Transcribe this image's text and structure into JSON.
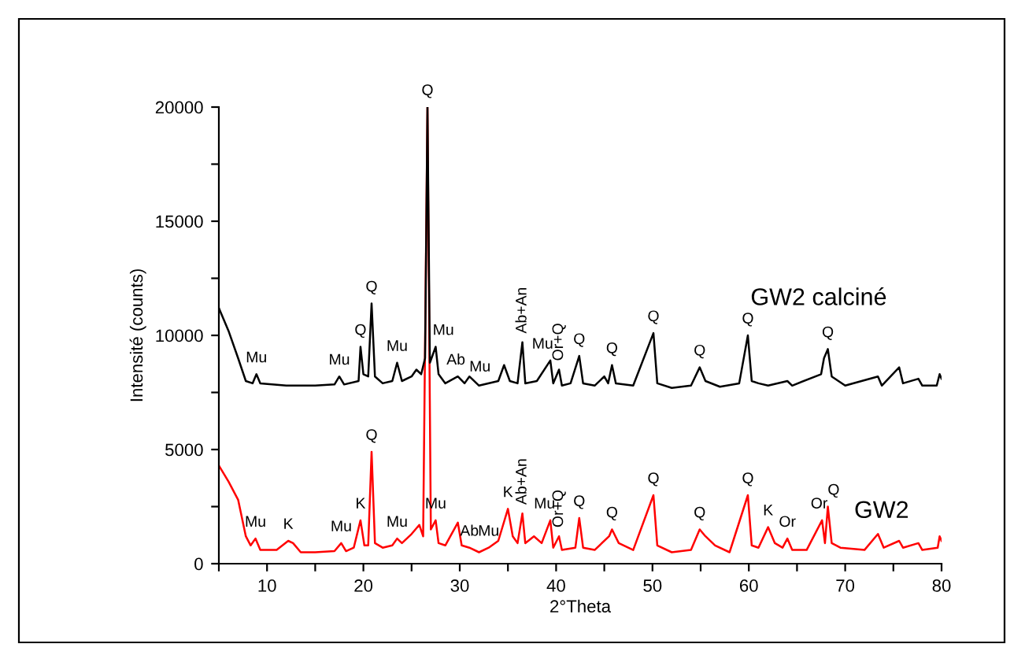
{
  "chart_data": {
    "type": "line",
    "xlabel": "2°Theta",
    "ylabel": "Intensité (counts)",
    "xlim": [
      5,
      80
    ],
    "ylim": [
      0,
      20000
    ],
    "xticks": [
      {
        "value": 5,
        "label": null
      },
      10,
      {
        "value": 15,
        "label": null
      },
      20,
      {
        "value": 25,
        "label": null
      },
      30,
      {
        "value": 35,
        "label": null
      },
      40,
      {
        "value": 45,
        "label": null
      },
      50,
      {
        "value": 55,
        "label": null
      },
      60,
      {
        "value": 65,
        "label": null
      },
      70,
      {
        "value": 75,
        "label": null
      },
      80
    ],
    "yticks": [
      0,
      {
        "value": 2500,
        "label": null
      },
      5000,
      {
        "value": 7500,
        "label": null
      },
      10000,
      {
        "value": 12500,
        "label": null
      },
      15000,
      {
        "value": 17500,
        "label": null
      },
      20000
    ],
    "grid": false,
    "legend": false,
    "marker": "none",
    "line_style": "solid",
    "series": [
      {
        "name": "GW2 calciné",
        "color": "#000000",
        "x": [
          5,
          6,
          7,
          7.8,
          8.5,
          8.9,
          9.3,
          12,
          15,
          17,
          17.5,
          18,
          19.5,
          19.7,
          20,
          20.5,
          20.85,
          21.2,
          22,
          23,
          23.5,
          24,
          25,
          25.5,
          26,
          26.4,
          26.65,
          26.9,
          27.5,
          27.8,
          28.5,
          29.8,
          30.5,
          31,
          32,
          34,
          34.6,
          35.2,
          36,
          36.5,
          36.8,
          38,
          39.4,
          39.7,
          40.3,
          40.6,
          41.5,
          42.4,
          42.8,
          44,
          45,
          45.4,
          45.8,
          46.2,
          48,
          50.1,
          50.5,
          52,
          54,
          54.9,
          55.5,
          57,
          59,
          59.9,
          60.3,
          61,
          62,
          64,
          64.5,
          67.5,
          67.8,
          68.2,
          68.6,
          70,
          73.4,
          73.8,
          75.6,
          76,
          77.6,
          78,
          79.5,
          79.8,
          80
        ],
        "values": [
          11200,
          10200,
          9000,
          8000,
          7900,
          8300,
          7900,
          7800,
          7800,
          7850,
          8200,
          7850,
          8000,
          9500,
          8300,
          8200,
          11400,
          8200,
          7900,
          8000,
          8800,
          8000,
          8200,
          8500,
          8300,
          9000,
          20000,
          8800,
          9500,
          8300,
          7900,
          8200,
          7900,
          8200,
          7800,
          8000,
          8700,
          8000,
          7900,
          9700,
          7900,
          8000,
          8900,
          7900,
          8500,
          7800,
          7900,
          9100,
          7900,
          7800,
          8200,
          7900,
          8700,
          7900,
          7800,
          10100,
          7900,
          7700,
          7800,
          8600,
          8000,
          7750,
          7900,
          10000,
          8000,
          7900,
          7800,
          8000,
          7800,
          8300,
          9000,
          9400,
          8200,
          7800,
          8200,
          7800,
          8600,
          7900,
          8100,
          7800,
          7800,
          8300,
          8100
        ]
      },
      {
        "name": "GW2",
        "color": "#ff0000",
        "x": [
          5,
          6,
          7,
          7.8,
          8.3,
          8.8,
          9.3,
          11,
          12.2,
          12.7,
          13.5,
          15,
          17,
          17.7,
          18.2,
          19,
          19.7,
          20.1,
          20.5,
          20.85,
          21.2,
          22,
          23,
          23.5,
          24,
          25,
          25.8,
          26.2,
          26.65,
          27,
          27.5,
          27.8,
          28.5,
          29.8,
          30.2,
          31,
          32,
          33,
          34,
          35,
          35.5,
          36,
          36.5,
          36.8,
          37.7,
          38.5,
          39.4,
          39.7,
          40.3,
          40.6,
          42,
          42.4,
          42.8,
          44,
          45.5,
          45.8,
          46.5,
          48,
          50.1,
          50.5,
          52,
          54,
          54.9,
          55.5,
          56.5,
          58,
          59.9,
          60.3,
          61,
          62,
          62.7,
          63.5,
          64,
          64.5,
          66,
          67.6,
          67.9,
          68.2,
          68.6,
          69.5,
          72,
          73.4,
          74,
          75.6,
          76,
          77.6,
          78,
          79.6,
          79.8,
          80
        ],
        "values": [
          4300,
          3600,
          2800,
          1200,
          800,
          1100,
          600,
          600,
          1000,
          900,
          500,
          500,
          550,
          900,
          550,
          700,
          1900,
          800,
          800,
          4900,
          900,
          700,
          800,
          1100,
          900,
          1300,
          1700,
          1200,
          20000,
          1500,
          1900,
          900,
          800,
          1800,
          800,
          700,
          500,
          700,
          1000,
          2400,
          1200,
          900,
          2200,
          900,
          1200,
          900,
          1900,
          700,
          1200,
          600,
          700,
          2000,
          700,
          600,
          1200,
          1500,
          900,
          600,
          3000,
          800,
          500,
          600,
          1500,
          1200,
          800,
          500,
          3000,
          800,
          700,
          1600,
          900,
          700,
          1100,
          600,
          600,
          1900,
          900,
          2500,
          900,
          700,
          600,
          1300,
          700,
          1000,
          700,
          900,
          600,
          700,
          1200,
          1000
        ]
      }
    ],
    "annotations": [
      {
        "text": "Mu",
        "x": 8.9,
        "y": 8300
      },
      {
        "text": "Mu",
        "x": 17.5,
        "y": 8200
      },
      {
        "text": "Q",
        "x": 19.7,
        "y": 9500
      },
      {
        "text": "Q",
        "x": 20.85,
        "y": 11400
      },
      {
        "text": "Mu",
        "x": 23.5,
        "y": 8800
      },
      {
        "text": "Q",
        "x": 26.65,
        "y": 20000
      },
      {
        "text": "Mu",
        "x": 28.3,
        "y": 9500
      },
      {
        "text": "Ab",
        "x": 29.6,
        "y": 8200
      },
      {
        "text": "Mu",
        "x": 32.1,
        "y": 7900
      },
      {
        "text": "Ab+An",
        "x": 36.5,
        "y": 9700
      },
      {
        "text": "Mu",
        "x": 38.6,
        "y": 8900
      },
      {
        "text": "Or+Q",
        "x": 40.3,
        "y": 8500
      },
      {
        "text": "Q",
        "x": 42.4,
        "y": 9100
      },
      {
        "text": "Q",
        "x": 45.8,
        "y": 8700
      },
      {
        "text": "Q",
        "x": 50.1,
        "y": 10100
      },
      {
        "text": "Q",
        "x": 54.9,
        "y": 8600
      },
      {
        "text": "Q",
        "x": 59.9,
        "y": 10000
      },
      {
        "text": "Q",
        "x": 68.2,
        "y": 9400
      },
      {
        "text": "Mu",
        "x": 8.8,
        "y": 1100
      },
      {
        "text": "K",
        "x": 12.2,
        "y": 1000
      },
      {
        "text": "Mu",
        "x": 17.7,
        "y": 900
      },
      {
        "text": "K",
        "x": 19.7,
        "y": 1900
      },
      {
        "text": "Q",
        "x": 20.85,
        "y": 4900
      },
      {
        "text": "Mu",
        "x": 23.5,
        "y": 1100
      },
      {
        "text": "Mu",
        "x": 27.5,
        "y": 1900
      },
      {
        "text": "Ab",
        "x": 31,
        "y": 700
      },
      {
        "text": "Mu",
        "x": 33,
        "y": 700
      },
      {
        "text": "K",
        "x": 35,
        "y": 2400
      },
      {
        "text": "Ab+An",
        "x": 36.5,
        "y": 2200
      },
      {
        "text": "Mu",
        "x": 38.8,
        "y": 1900
      },
      {
        "text": "Or+Q",
        "x": 40.3,
        "y": 1200
      },
      {
        "text": "Q",
        "x": 42.4,
        "y": 2000
      },
      {
        "text": "Q",
        "x": 45.8,
        "y": 1500
      },
      {
        "text": "Q",
        "x": 50.1,
        "y": 3000
      },
      {
        "text": "Q",
        "x": 54.9,
        "y": 1500
      },
      {
        "text": "Q",
        "x": 59.9,
        "y": 3000
      },
      {
        "text": "K",
        "x": 62,
        "y": 1600
      },
      {
        "text": "Or",
        "x": 64,
        "y": 1100
      },
      {
        "text": "Or",
        "x": 67.3,
        "y": 1900
      },
      {
        "text": "Q",
        "x": 68.8,
        "y": 2500
      }
    ]
  }
}
